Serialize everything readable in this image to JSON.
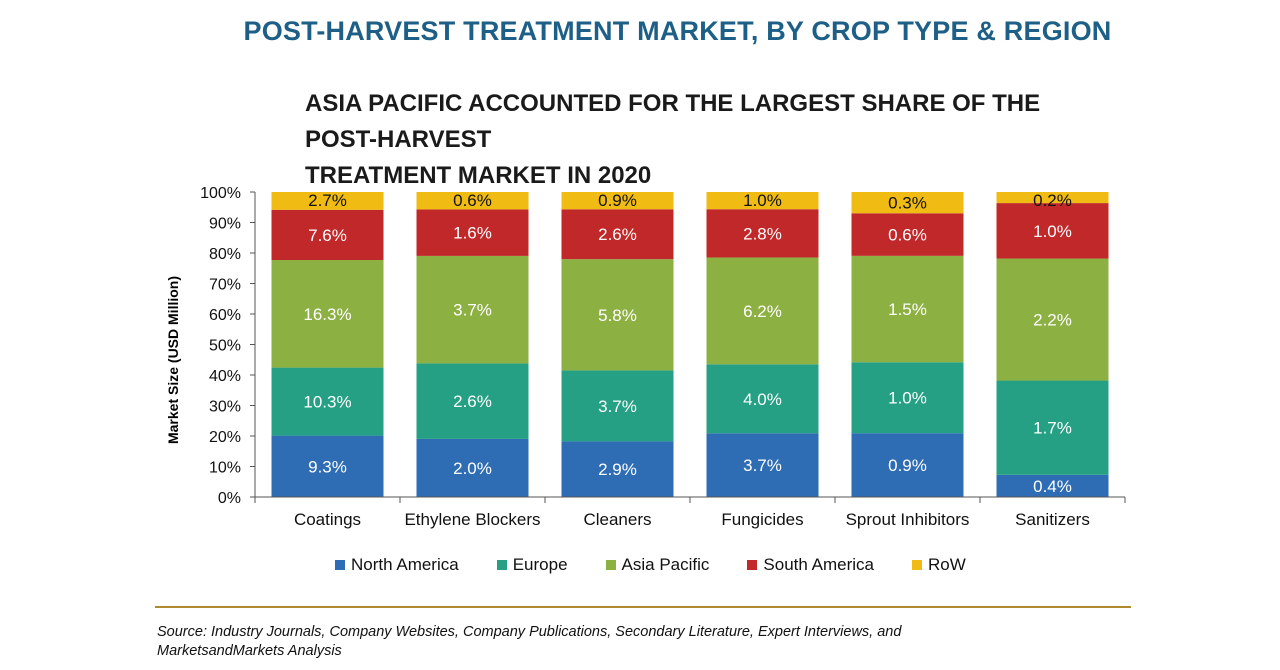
{
  "header": {
    "title": "POST-HARVEST TREATMENT MARKET, BY CROP TYPE & REGION",
    "subtitle_line1": "ASIA PACIFIC ACCOUNTED FOR THE LARGEST SHARE OF THE POST-HARVEST",
    "subtitle_line2": "TREATMENT MARKET IN 2020"
  },
  "colors": {
    "title": "#1d5f86",
    "North America": "#2e6db4",
    "Europe": "#26a084",
    "Asia Pacific": "#8db043",
    "South America": "#c0282a",
    "RoW": "#f0bb12"
  },
  "chart_data": {
    "type": "bar",
    "stacked": true,
    "ylabel": "Market Size (USD Million)",
    "ylim": [
      0,
      100
    ],
    "ytick_labels": [
      "0%",
      "10%",
      "20%",
      "30%",
      "40%",
      "50%",
      "60%",
      "70%",
      "80%",
      "90%",
      "100%"
    ],
    "categories": [
      "Coatings",
      "Ethylene Blockers",
      "Cleaners",
      "Fungicides",
      "Sprout Inhibitors",
      "Sanitizers"
    ],
    "series": [
      {
        "name": "North America",
        "values": [
          9.3,
          2.0,
          2.9,
          3.7,
          0.9,
          0.4
        ],
        "labels": [
          "9.3%",
          "2.0%",
          "2.9%",
          "3.7%",
          "0.9%",
          "0.4%"
        ]
      },
      {
        "name": "Europe",
        "values": [
          10.3,
          2.6,
          3.7,
          4.0,
          1.0,
          1.7
        ],
        "labels": [
          "10.3%",
          "2.6%",
          "3.7%",
          "4.0%",
          "1.0%",
          "1.7%"
        ]
      },
      {
        "name": "Asia Pacific",
        "values": [
          16.3,
          3.7,
          5.8,
          6.2,
          1.5,
          2.2
        ],
        "labels": [
          "16.3%",
          "3.7%",
          "5.8%",
          "6.2%",
          "1.5%",
          "2.2%"
        ]
      },
      {
        "name": "South America",
        "values": [
          7.6,
          1.6,
          2.6,
          2.8,
          0.6,
          1.0
        ],
        "labels": [
          "7.6%",
          "1.6%",
          "2.6%",
          "2.8%",
          "0.6%",
          "1.0%"
        ]
      },
      {
        "name": "RoW",
        "values": [
          2.7,
          0.6,
          0.9,
          1.0,
          0.3,
          0.2
        ],
        "labels": [
          "2.7%",
          "0.6%",
          "0.9%",
          "1.0%",
          "0.3%",
          "0.2%"
        ]
      }
    ],
    "legend_position": "bottom"
  },
  "footer": {
    "source_line1": "Source: Industry Journals, Company Websites, Company Publications, Secondary Literature, Expert Interviews, and",
    "source_line2": "MarketsandMarkets Analysis"
  }
}
